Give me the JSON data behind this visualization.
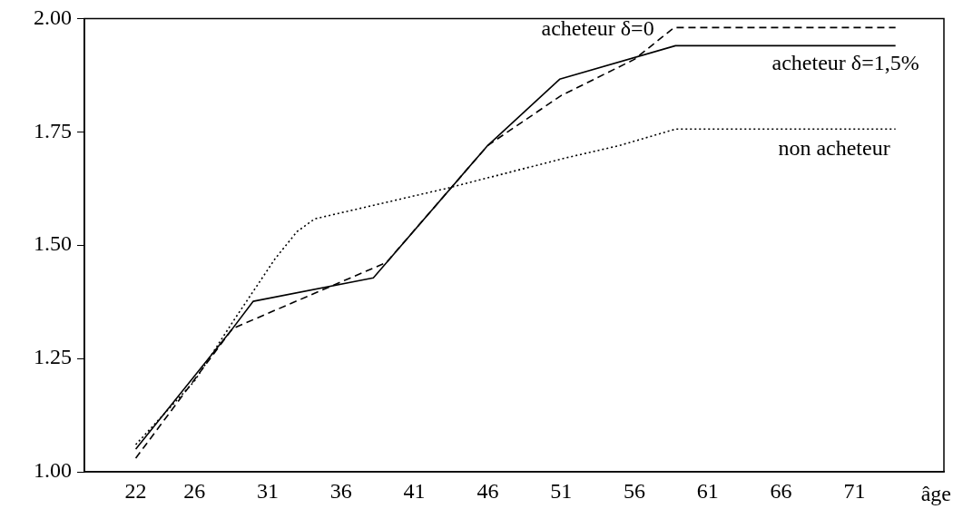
{
  "chart_data": {
    "type": "line",
    "xlabel": "âge",
    "xlim": [
      18.5,
      77.1
    ],
    "xticks": [
      22,
      26,
      31,
      36,
      41,
      46,
      51,
      56,
      61,
      66,
      71
    ],
    "ylim": [
      1,
      2
    ],
    "yticks": [
      {
        "value": 1,
        "label": "1.00"
      },
      {
        "value": 1.25,
        "label": "1.25"
      },
      {
        "value": 1.5,
        "label": "1.50"
      },
      {
        "value": 1.75,
        "label": "1.75"
      },
      {
        "value": 2,
        "label": "2.00"
      }
    ],
    "grid": false,
    "legend": false,
    "marker": "none",
    "series": [
      {
        "name": "acheteur δ=0",
        "color": "#000000",
        "line_style": "dashed",
        "x": [
          22,
          28.6,
          39.1,
          46,
          51,
          56,
          58.7,
          73.8
        ],
        "values": [
          1.03,
          1.316,
          1.462,
          1.72,
          1.83,
          1.91,
          1.98,
          1.98
        ]
      },
      {
        "name": "acheteur δ=1,5%",
        "color": "#000000",
        "line_style": "solid",
        "x": [
          22,
          28.6,
          30,
          38.2,
          46,
          50.9,
          58.8,
          73.8
        ],
        "values": [
          1.05,
          1.316,
          1.376,
          1.428,
          1.72,
          1.866,
          1.94,
          1.94
        ]
      },
      {
        "name": "non acheteur",
        "color": "#000000",
        "line_style": "dotted",
        "x": [
          22,
          26,
          28.6,
          31.5,
          33,
          34.2,
          43.3,
          51,
          55,
          58.8,
          73.8
        ],
        "values": [
          1.06,
          1.2,
          1.33,
          1.47,
          1.53,
          1.558,
          1.626,
          1.69,
          1.72,
          1.756,
          1.756
        ]
      }
    ]
  }
}
